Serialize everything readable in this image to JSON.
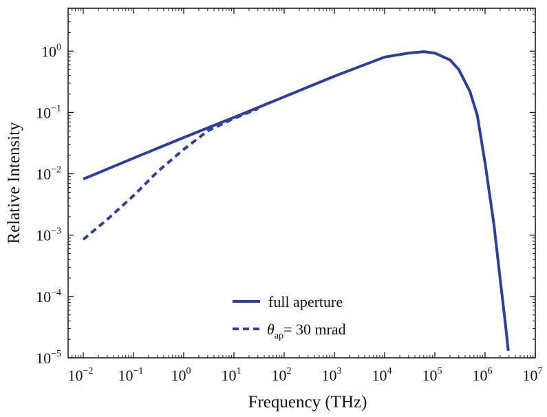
{
  "chart_data": {
    "type": "line",
    "xlabel": "Frequency (THz)",
    "ylabel": "Relative Intensity",
    "xscale": "log",
    "yscale": "log",
    "xlim": [
      0.005,
      10000000
    ],
    "ylim": [
      1e-05,
      5
    ],
    "xticks": [
      {
        "base": "10",
        "exp": "−2",
        "value": 0.01
      },
      {
        "base": "10",
        "exp": "−1",
        "value": 0.1
      },
      {
        "base": "10",
        "exp": "0",
        "value": 1
      },
      {
        "base": "10",
        "exp": "1",
        "value": 10
      },
      {
        "base": "10",
        "exp": "2",
        "value": 100
      },
      {
        "base": "10",
        "exp": "3",
        "value": 1000
      },
      {
        "base": "10",
        "exp": "4",
        "value": 10000
      },
      {
        "base": "10",
        "exp": "5",
        "value": 100000
      },
      {
        "base": "10",
        "exp": "6",
        "value": 1000000
      },
      {
        "base": "10",
        "exp": "7",
        "value": 10000000
      }
    ],
    "yticks": [
      {
        "base": "10",
        "exp": "−5",
        "value": 1e-05
      },
      {
        "base": "10",
        "exp": "−4",
        "value": 0.0001
      },
      {
        "base": "10",
        "exp": "−3",
        "value": 0.001
      },
      {
        "base": "10",
        "exp": "−2",
        "value": 0.01
      },
      {
        "base": "10",
        "exp": "−1",
        "value": 0.1
      },
      {
        "base": "10",
        "exp": "0",
        "value": 1
      }
    ],
    "grid": false,
    "legend_position": "bottom-center",
    "color": "#2b3fa0",
    "series": [
      {
        "name": "full aperture",
        "style": "solid",
        "x": [
          0.01,
          0.1,
          1,
          10,
          100,
          1000,
          10000,
          30000,
          60000,
          100000,
          200000,
          300000,
          500000,
          700000,
          1000000,
          1500000,
          2000000,
          2500000,
          2900000
        ],
        "y": [
          0.0082,
          0.018,
          0.039,
          0.083,
          0.18,
          0.39,
          0.8,
          0.93,
          0.98,
          0.93,
          0.72,
          0.5,
          0.22,
          0.09,
          0.015,
          0.0015,
          0.00019,
          4e-05,
          1.3e-05
        ]
      },
      {
        "name": "θap= 30 mrad",
        "style": "dashed",
        "legend_label": {
          "symbol": "θ",
          "sub": "ap",
          "text": "= 30 mrad"
        },
        "x": [
          0.01,
          0.03,
          0.1,
          0.3,
          1,
          3,
          10,
          30
        ],
        "y": [
          0.00085,
          0.0018,
          0.0044,
          0.0108,
          0.025,
          0.05,
          0.08,
          0.115
        ]
      }
    ]
  }
}
